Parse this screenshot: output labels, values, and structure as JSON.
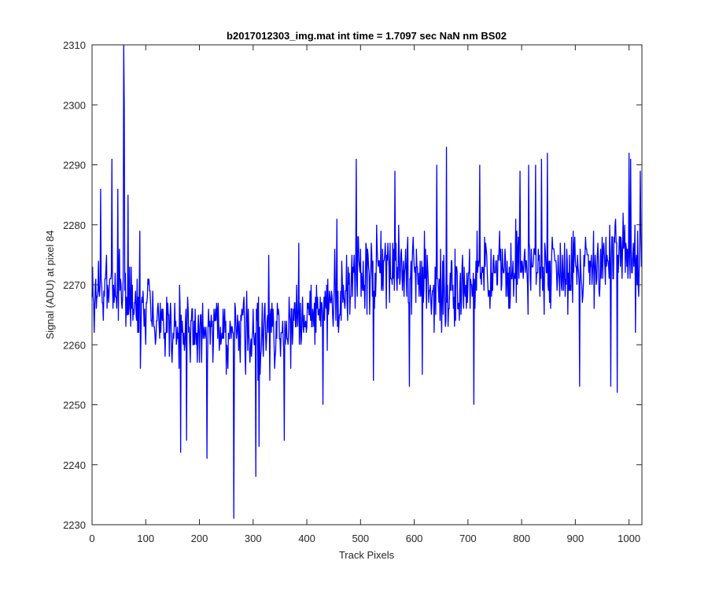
{
  "chart_data": {
    "type": "line",
    "title": "b2017012303_img.mat int time = 1.7097 sec  NaN nm BS02",
    "xlabel": "Track Pixels",
    "ylabel": "Signal (ADU) at pixel 84",
    "xlim": [
      0,
      1024
    ],
    "ylim": [
      2230,
      2310
    ],
    "xticks": [
      0,
      100,
      200,
      300,
      400,
      500,
      600,
      700,
      800,
      900,
      1000
    ],
    "yticks": [
      2230,
      2240,
      2250,
      2260,
      2270,
      2280,
      2290,
      2300,
      2310
    ],
    "grid": false,
    "line_color": "#0000ff",
    "series": [
      {
        "trend": [
          [
            0,
            2269
          ],
          [
            50,
            2269
          ],
          [
            100,
            2266
          ],
          [
            150,
            2263
          ],
          [
            200,
            2262
          ],
          [
            250,
            2261
          ],
          [
            300,
            2262
          ],
          [
            350,
            2263
          ],
          [
            400,
            2264
          ],
          [
            450,
            2267
          ],
          [
            500,
            2272
          ],
          [
            550,
            2274
          ],
          [
            600,
            2272
          ],
          [
            650,
            2269
          ],
          [
            700,
            2270
          ],
          [
            750,
            2272
          ],
          [
            800,
            2273
          ],
          [
            850,
            2273
          ],
          [
            900,
            2273
          ],
          [
            950,
            2274
          ],
          [
            1000,
            2275
          ],
          [
            1024,
            2275
          ]
        ],
        "noise_amplitude": 7,
        "points": [
          [
            59,
            2310
          ],
          [
            60,
            2300
          ],
          [
            37,
            2291
          ],
          [
            16,
            2286
          ],
          [
            48,
            2286
          ],
          [
            67,
            2285
          ],
          [
            89,
            2279
          ],
          [
            90,
            2256
          ],
          [
            165,
            2242
          ],
          [
            176,
            2244
          ],
          [
            214,
            2241
          ],
          [
            264,
            2231
          ],
          [
            278,
            2264
          ],
          [
            305,
            2238
          ],
          [
            311,
            2243
          ],
          [
            329,
            2275
          ],
          [
            358,
            2244
          ],
          [
            385,
            2277
          ],
          [
            430,
            2250
          ],
          [
            456,
            2281
          ],
          [
            492,
            2291
          ],
          [
            524,
            2254
          ],
          [
            564,
            2289
          ],
          [
            591,
            2253
          ],
          [
            615,
            2255
          ],
          [
            642,
            2290
          ],
          [
            660,
            2293
          ],
          [
            681,
            2266
          ],
          [
            711,
            2250
          ],
          [
            722,
            2290
          ],
          [
            789,
            2281
          ],
          [
            797,
            2289
          ],
          [
            813,
            2290
          ],
          [
            826,
            2290
          ],
          [
            837,
            2291
          ],
          [
            848,
            2292
          ],
          [
            908,
            2253
          ],
          [
            966,
            2253
          ],
          [
            978,
            2252
          ],
          [
            1000,
            2292
          ],
          [
            1003,
            2291
          ],
          [
            1012,
            2262
          ],
          [
            1017,
            2270
          ],
          [
            1021,
            2289
          ]
        ]
      }
    ]
  }
}
